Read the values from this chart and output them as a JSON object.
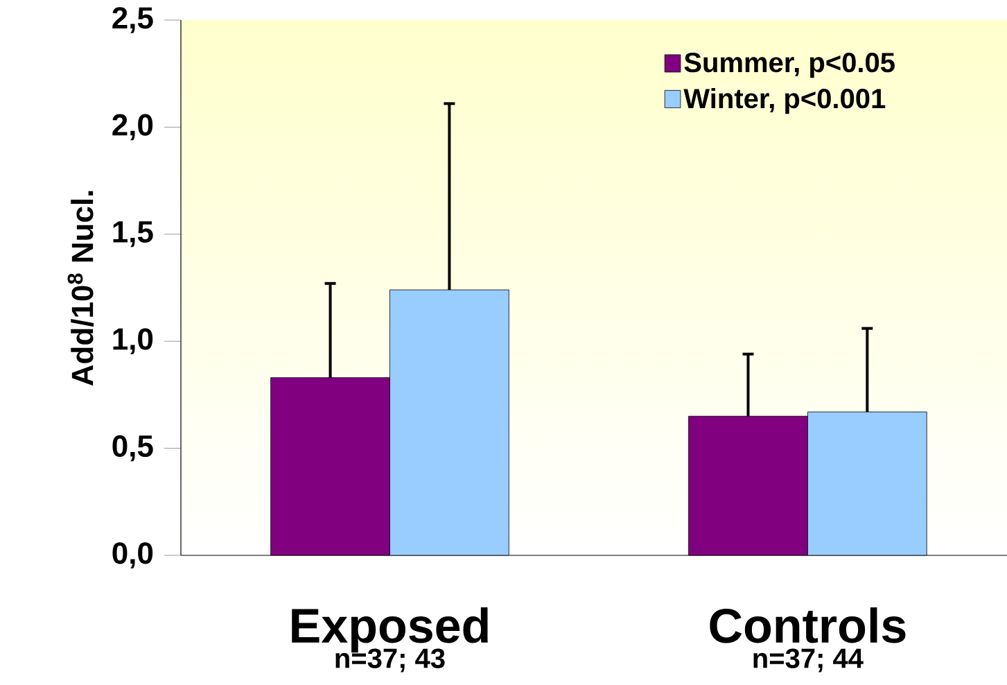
{
  "chart_data": {
    "type": "bar",
    "ylabel": "Add/10$^{8}$ Nucl.",
    "categories": [
      "Exposed",
      "Controls"
    ],
    "series": [
      {
        "name": "Summer, p<0.05",
        "color": "#800080",
        "values": [
          0.83,
          0.65
        ],
        "errors": [
          [
            0.83,
            1.27
          ],
          [
            0.65,
            0.94
          ]
        ]
      },
      {
        "name": "Winter, p<0.001",
        "color": "#99ccff",
        "values": [
          1.24,
          0.67
        ],
        "errors": [
          [
            1.24,
            2.11
          ],
          [
            0.67,
            1.06
          ]
        ]
      }
    ],
    "ylim": [
      0,
      2.5
    ],
    "yticks": [
      {
        "value": 0,
        "label": "0,0"
      },
      {
        "value": 0.5,
        "label": "0,5"
      },
      {
        "value": 1,
        "label": "1,0"
      },
      {
        "value": 1.5,
        "label": "1,5"
      },
      {
        "value": 2,
        "label": "2,0"
      },
      {
        "value": 2.5,
        "label": "2,5"
      }
    ],
    "legend": "top right",
    "grid": false,
    "annotations": [
      "n=37; 43",
      "n=37; 44"
    ]
  }
}
